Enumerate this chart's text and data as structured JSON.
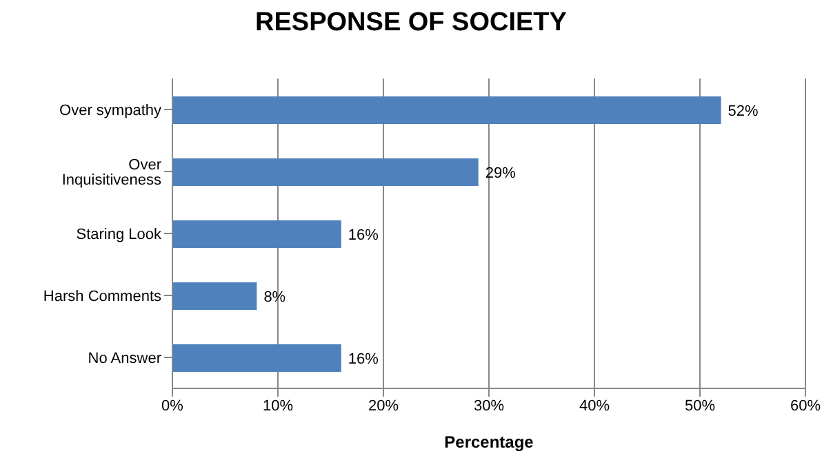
{
  "chart_data": {
    "type": "bar",
    "orientation": "horizontal",
    "title": "RESPONSE OF SOCIETY",
    "xlabel": "Percentage",
    "categories": [
      "Over sympathy",
      "Over Inquisitiveness",
      "Staring Look",
      "Harsh Comments",
      "No Answer"
    ],
    "values": [
      52,
      29,
      16,
      8,
      16
    ],
    "color": "#4f81bd",
    "value_labels": [
      "52%",
      "29%",
      "16%",
      "8%",
      "16%"
    ],
    "xlim": [
      0,
      60
    ],
    "xticks": [
      {
        "value": 0,
        "label": "0%"
      },
      {
        "value": 10,
        "label": "10%"
      },
      {
        "value": 20,
        "label": "20%"
      },
      {
        "value": 30,
        "label": "30%"
      },
      {
        "value": 40,
        "label": "40%"
      },
      {
        "value": 50,
        "label": "50%"
      },
      {
        "value": 60,
        "label": "60%"
      }
    ],
    "grid": "x"
  }
}
